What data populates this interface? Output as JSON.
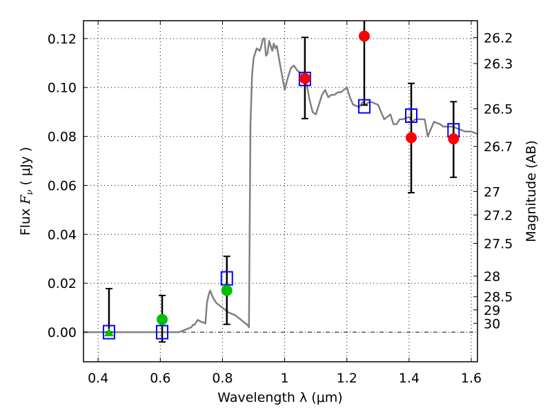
{
  "chart_data": {
    "type": "scatter",
    "title": "",
    "xlabel": "Wavelength  λ (μm)",
    "ylabel": "Flux  F_ν  ( μJy )",
    "ylabel_parts": {
      "prefix": "Flux ",
      "symbol": "F",
      "subscript": "ν",
      "suffix": "  ( μJy )"
    },
    "y2label": "Magnitude (AB)",
    "xlim": [
      0.353,
      1.62
    ],
    "ylim": [
      -0.0121,
      0.1273
    ],
    "grid": true,
    "legend": "none",
    "x_ticks": [
      0.4,
      0.6,
      0.8,
      1.0,
      1.2,
      1.4,
      1.6
    ],
    "x_tick_labels": [
      "0.4",
      "0.6",
      "0.8",
      "1",
      "1.2",
      "1.4",
      "1.6"
    ],
    "y_ticks": [
      0.0,
      0.02,
      0.04,
      0.06,
      0.08,
      0.1,
      0.12
    ],
    "y_tick_labels": [
      "0.00",
      "0.02",
      "0.04",
      "0.06",
      "0.08",
      "0.10",
      "0.12"
    ],
    "y2_ticks": [
      {
        "label": "26.2",
        "flux": 0.1204
      },
      {
        "label": "26.3",
        "flux": 0.1098
      },
      {
        "label": "26.5",
        "flux": 0.0913
      },
      {
        "label": "26.7",
        "flux": 0.0759
      },
      {
        "label": "27",
        "flux": 0.0575
      },
      {
        "label": "27.2",
        "flux": 0.0479
      },
      {
        "label": "27.5",
        "flux": 0.0363
      },
      {
        "label": "28",
        "flux": 0.0229
      },
      {
        "label": "28.5",
        "flux": 0.0145
      },
      {
        "label": "29",
        "flux": 0.0091
      },
      {
        "label": "30",
        "flux": 0.0036
      }
    ],
    "zero_line": 0.0,
    "series": [
      {
        "name": "model-spectrum",
        "kind": "line",
        "color": "#808080",
        "x": [
          0.353,
          0.4,
          0.5,
          0.6,
          0.64,
          0.66,
          0.68,
          0.7,
          0.705,
          0.71,
          0.72,
          0.735,
          0.74,
          0.745,
          0.75,
          0.755,
          0.76,
          0.77,
          0.78,
          0.8,
          0.82,
          0.84,
          0.86,
          0.88,
          0.885,
          0.89,
          0.895,
          0.9,
          0.91,
          0.92,
          0.925,
          0.93,
          0.935,
          0.94,
          0.945,
          0.95,
          0.955,
          0.96,
          0.965,
          0.97,
          0.975,
          0.98,
          0.99,
          1.0,
          1.01,
          1.02,
          1.03,
          1.04,
          1.05,
          1.06,
          1.07,
          1.08,
          1.09,
          1.1,
          1.12,
          1.13,
          1.14,
          1.15,
          1.16,
          1.17,
          1.18,
          1.2,
          1.21,
          1.22,
          1.24,
          1.25,
          1.26,
          1.27,
          1.28,
          1.3,
          1.31,
          1.32,
          1.34,
          1.35,
          1.36,
          1.37,
          1.38,
          1.4,
          1.41,
          1.42,
          1.44,
          1.45,
          1.46,
          1.47,
          1.48,
          1.5,
          1.51,
          1.52,
          1.54,
          1.56,
          1.58,
          1.6,
          1.62
        ],
        "y": [
          0.0,
          0.0,
          0.0,
          0.0,
          0.0,
          0.0,
          0.001,
          0.002,
          0.003,
          0.003,
          0.005,
          0.004,
          0.004,
          0.0035,
          0.012,
          0.015,
          0.017,
          0.014,
          0.012,
          0.01,
          0.008,
          0.007,
          0.005,
          0.003,
          0.002,
          0.085,
          0.105,
          0.112,
          0.116,
          0.115,
          0.117,
          0.12,
          0.12,
          0.113,
          0.114,
          0.119,
          0.117,
          0.115,
          0.118,
          0.116,
          0.117,
          0.113,
          0.106,
          0.099,
          0.104,
          0.108,
          0.109,
          0.107,
          0.106,
          0.104,
          0.102,
          0.095,
          0.09,
          0.089,
          0.097,
          0.099,
          0.096,
          0.097,
          0.097,
          0.098,
          0.098,
          0.1,
          0.096,
          0.093,
          0.092,
          0.094,
          0.093,
          0.094,
          0.094,
          0.093,
          0.09,
          0.087,
          0.089,
          0.085,
          0.085,
          0.087,
          0.087,
          0.088,
          0.086,
          0.087,
          0.087,
          0.087,
          0.08,
          0.083,
          0.086,
          0.085,
          0.084,
          0.084,
          0.084,
          0.083,
          0.082,
          0.082,
          0.081
        ]
      },
      {
        "name": "model-photometry",
        "kind": "open-square",
        "color": "#0000ff",
        "x": [
          0.435,
          0.606,
          0.814,
          1.065,
          1.256,
          1.407,
          1.543
        ],
        "y": [
          0.0,
          0.0,
          0.022,
          0.1035,
          0.0923,
          0.0885,
          0.0825
        ]
      },
      {
        "name": "observed-green",
        "kind": "circle",
        "color": "#00bf00",
        "x": [
          0.606,
          0.814
        ],
        "y": [
          0.0052,
          0.017
        ],
        "yerr_low": [
          -0.004,
          0.0032
        ],
        "yerr_high": [
          0.015,
          0.031
        ]
      },
      {
        "name": "observed-green-upper",
        "kind": "triangle",
        "color": "#00bf00",
        "x": [
          0.435
        ],
        "y": [
          0.0
        ],
        "yerr_low": [
          0.0
        ],
        "yerr_high": [
          0.0178
        ]
      },
      {
        "name": "observed-red",
        "kind": "circle",
        "color": "#ff0000",
        "x": [
          1.065,
          1.256,
          1.407,
          1.543
        ],
        "y": [
          0.1037,
          0.121,
          0.0795,
          0.079
        ],
        "yerr_low": [
          0.0873,
          0.0928,
          0.057,
          0.0633
        ],
        "yerr_high": [
          0.1205,
          0.1273,
          0.1017,
          0.0942
        ]
      }
    ]
  }
}
